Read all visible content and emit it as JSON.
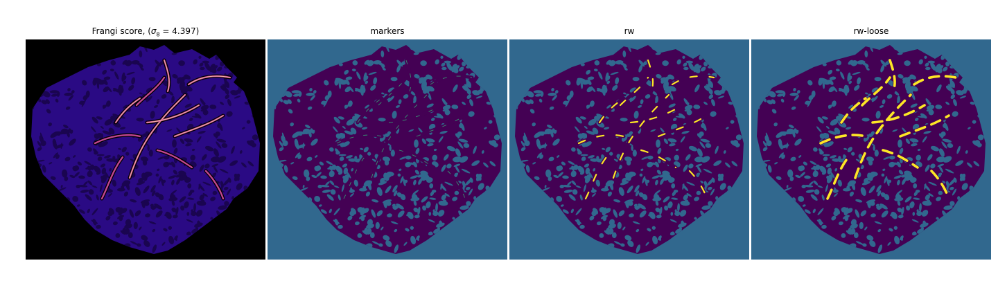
{
  "panels": [
    {
      "title_main": "Frangi score, (",
      "title_sym": "σ",
      "title_sub": "8",
      "title_rest": " = 4.397)",
      "palette": "frangi",
      "colors": {
        "bg": "#000000",
        "tissue": "#2a0a84",
        "vessel": "#d84ea0",
        "bright": "#fcd6a8"
      }
    },
    {
      "title": "markers",
      "palette": "markers",
      "colors": {
        "bg": "#31688e",
        "tissue": "#440154",
        "marker": "#35b779"
      }
    },
    {
      "title": "rw",
      "palette": "rw",
      "colors": {
        "bg": "#31688e",
        "tissue": "#440154",
        "label": "#fde725"
      }
    },
    {
      "title": "rw-loose",
      "palette": "rwloose",
      "colors": {
        "bg": "#31688e",
        "tissue": "#440154",
        "label": "#fde725"
      }
    }
  ]
}
